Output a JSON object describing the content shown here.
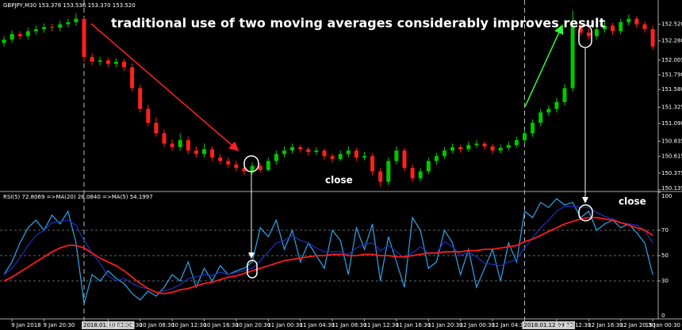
{
  "chart_data": [
    {
      "type": "candlestick",
      "title": "GBPJPY,M30 153.378 153.536 153.370 153.520",
      "annotations": [
        "traditional use of two moving averages considerably improves result",
        "close",
        "close"
      ],
      "categories": [
        null,
        "9 Jan 2018",
        null,
        null,
        null,
        "9 Jan 20:30",
        null,
        null,
        null,
        null,
        "2018.01.10 02:30",
        null,
        null,
        "10 Jan 04:30",
        null,
        null,
        null,
        "10 Jan 08:30",
        null,
        null,
        null,
        "10 Jan 12:30",
        null,
        null,
        null,
        "10 Jan 16:30",
        null,
        null,
        null,
        "10 Jan 20:30",
        null,
        null,
        null,
        "11 Jan 00:30",
        null,
        null,
        null,
        "11 Jan 04:30",
        null,
        null,
        null,
        "11 Jan 08:30",
        null,
        null,
        null,
        "11 Jan 12:30",
        null,
        null,
        null,
        "11 Jan 16:30",
        null,
        null,
        null,
        "11 Jan 20:30",
        null,
        null,
        null,
        "12 Jan 00:30",
        null,
        null,
        null,
        "12 Jan 04:30",
        null,
        null,
        null,
        "2018.01.12 09:30",
        null,
        null,
        null,
        "12 Jan 12:30",
        null,
        null,
        null,
        "12 Jan 16:30",
        null,
        null,
        null,
        "12 Jan 20:30",
        null,
        null,
        null,
        "15 Jan 00:30"
      ],
      "candles": [
        [
          152.25,
          152.35,
          152.2,
          152.3
        ],
        [
          152.3,
          152.43,
          152.25,
          152.38
        ],
        [
          152.38,
          152.42,
          152.3,
          152.35
        ],
        [
          152.35,
          152.47,
          152.3,
          152.42
        ],
        [
          152.42,
          152.5,
          152.37,
          152.45
        ],
        [
          152.45,
          152.53,
          152.4,
          152.48
        ],
        [
          152.48,
          152.53,
          152.42,
          152.47
        ],
        [
          152.47,
          152.57,
          152.42,
          152.52
        ],
        [
          152.52,
          152.6,
          152.47,
          152.55
        ],
        [
          152.55,
          152.68,
          152.5,
          152.6
        ],
        [
          152.6,
          152.62,
          151.98,
          152.05
        ],
        [
          152.05,
          152.1,
          151.93,
          151.98
        ],
        [
          151.98,
          152.05,
          151.93,
          152.0
        ],
        [
          152.0,
          152.04,
          151.9,
          151.95
        ],
        [
          151.95,
          152.03,
          151.9,
          151.98
        ],
        [
          151.98,
          152.02,
          151.85,
          151.9
        ],
        [
          151.9,
          151.95,
          151.55,
          151.6
        ],
        [
          151.6,
          151.65,
          151.25,
          151.3
        ],
        [
          151.3,
          151.36,
          151.05,
          151.1
        ],
        [
          151.1,
          151.18,
          150.9,
          150.95
        ],
        [
          150.95,
          151.0,
          150.75,
          150.8
        ],
        [
          150.8,
          150.86,
          150.7,
          150.75
        ],
        [
          150.75,
          150.95,
          150.7,
          150.85
        ],
        [
          150.85,
          150.9,
          150.65,
          150.7
        ],
        [
          150.7,
          150.76,
          150.6,
          150.65
        ],
        [
          150.65,
          150.8,
          150.6,
          150.72
        ],
        [
          150.72,
          150.76,
          150.55,
          150.6
        ],
        [
          150.6,
          150.65,
          150.5,
          150.55
        ],
        [
          150.55,
          150.6,
          150.45,
          150.5
        ],
        [
          150.5,
          150.55,
          150.4,
          150.45
        ],
        [
          150.45,
          150.5,
          150.35,
          150.4
        ],
        [
          150.4,
          150.53,
          150.36,
          150.48
        ],
        [
          150.48,
          150.52,
          150.38,
          150.42
        ],
        [
          150.42,
          150.6,
          150.4,
          150.55
        ],
        [
          150.55,
          150.7,
          150.5,
          150.65
        ],
        [
          150.65,
          150.76,
          150.6,
          150.7
        ],
        [
          150.7,
          150.8,
          150.66,
          150.75
        ],
        [
          150.75,
          150.78,
          150.67,
          150.72
        ],
        [
          150.72,
          150.75,
          150.63,
          150.68
        ],
        [
          150.68,
          150.75,
          150.64,
          150.7
        ],
        [
          150.7,
          150.73,
          150.57,
          150.62
        ],
        [
          150.62,
          150.66,
          150.53,
          150.58
        ],
        [
          150.58,
          150.7,
          150.55,
          150.65
        ],
        [
          150.65,
          150.76,
          150.6,
          150.7
        ],
        [
          150.7,
          150.74,
          150.55,
          150.6
        ],
        [
          150.6,
          150.68,
          150.56,
          150.62
        ],
        [
          150.62,
          150.66,
          150.35,
          150.4
        ],
        [
          150.4,
          150.45,
          150.18,
          150.25
        ],
        [
          150.25,
          150.6,
          150.2,
          150.55
        ],
        [
          150.55,
          150.76,
          150.5,
          150.7
        ],
        [
          150.7,
          150.74,
          150.4,
          150.45
        ],
        [
          150.45,
          150.5,
          150.25,
          150.3
        ],
        [
          150.3,
          150.45,
          150.26,
          150.4
        ],
        [
          150.4,
          150.6,
          150.36,
          150.55
        ],
        [
          150.55,
          150.67,
          150.5,
          150.62
        ],
        [
          150.62,
          150.75,
          150.58,
          150.7
        ],
        [
          150.7,
          150.8,
          150.66,
          150.75
        ],
        [
          150.75,
          150.78,
          150.67,
          150.72
        ],
        [
          150.72,
          150.83,
          150.68,
          150.78
        ],
        [
          150.78,
          150.85,
          150.74,
          150.8
        ],
        [
          150.8,
          150.83,
          150.71,
          150.76
        ],
        [
          150.76,
          150.8,
          150.65,
          150.7
        ],
        [
          150.7,
          150.79,
          150.66,
          150.74
        ],
        [
          150.74,
          150.83,
          150.7,
          150.78
        ],
        [
          150.78,
          150.9,
          150.74,
          150.85
        ],
        [
          150.85,
          151.0,
          150.8,
          150.95
        ],
        [
          150.95,
          151.15,
          150.9,
          151.1
        ],
        [
          151.1,
          151.3,
          151.05,
          151.25
        ],
        [
          151.25,
          151.35,
          151.2,
          151.3
        ],
        [
          151.3,
          151.46,
          151.25,
          151.4
        ],
        [
          151.4,
          151.66,
          151.35,
          151.6
        ],
        [
          151.6,
          152.72,
          151.55,
          152.5
        ],
        [
          152.5,
          152.55,
          152.35,
          152.4
        ],
        [
          152.4,
          152.46,
          152.3,
          152.35
        ],
        [
          152.35,
          152.5,
          152.3,
          152.45
        ],
        [
          152.45,
          152.56,
          152.4,
          152.5
        ],
        [
          152.5,
          152.54,
          152.37,
          152.42
        ],
        [
          152.42,
          152.6,
          152.38,
          152.55
        ],
        [
          152.55,
          152.66,
          152.5,
          152.6
        ],
        [
          152.6,
          152.64,
          152.47,
          152.52
        ],
        [
          152.52,
          152.56,
          152.4,
          152.45
        ],
        [
          152.45,
          152.5,
          152.15,
          152.2
        ]
      ],
      "up_color": "#00c800",
      "down_color": "#ff2020",
      "ylim": [
        150.11,
        152.87
      ],
      "yticks": [
        150.135,
        150.375,
        150.615,
        150.835,
        {
          "value": 151.09,
          "label": "151.090"
        },
        151.325,
        {
          "value": 151.58,
          "label": "151.580"
        },
        {
          "value": 151.79,
          "label": "151.790"
        },
        152.005,
        {
          "value": 152.28,
          "label": "152.280"
        },
        {
          "value": 152.52,
          "label": "152.520"
        }
      ]
    },
    {
      "type": "line",
      "title": "RSI(5) 72.8069 =>MA(20) 28.0840 =>MA(5) 54.1997",
      "series": [
        {
          "color": "#2aa6ee",
          "values": [
            35,
            45,
            60,
            72,
            78,
            70,
            82,
            75,
            85,
            60,
            12,
            35,
            30,
            38,
            32,
            28,
            20,
            15,
            22,
            18,
            25,
            35,
            30,
            45,
            25,
            40,
            30,
            42,
            35,
            38,
            40,
            45,
            72,
            65,
            78,
            55,
            70,
            45,
            60,
            50,
            40,
            70,
            62,
            35,
            72,
            55,
            75,
            30,
            65,
            45,
            25,
            80,
            70,
            40,
            45,
            70,
            60,
            35,
            55,
            25,
            40,
            55,
            30,
            60,
            45,
            85,
            80,
            92,
            88,
            95,
            90,
            92,
            80,
            85,
            70,
            75,
            78,
            72,
            75,
            68,
            60,
            35
          ]
        },
        {
          "color": "#2030c0",
          "values": [
            35,
            40,
            48,
            58,
            66,
            70,
            76,
            77,
            78,
            74,
            62,
            52,
            44,
            34,
            30,
            32,
            28,
            25,
            24,
            21,
            22,
            24,
            27,
            32,
            33,
            35,
            34,
            37,
            35,
            37,
            38,
            40,
            46,
            53,
            60,
            62,
            66,
            62,
            60,
            56,
            53,
            53,
            53,
            51,
            56,
            59,
            60,
            54,
            58,
            53,
            48,
            52,
            57,
            52,
            52,
            61,
            57,
            50,
            53,
            49,
            44,
            43,
            42,
            45,
            47,
            56,
            64,
            72,
            78,
            85,
            89,
            89,
            88,
            88,
            84,
            81,
            79,
            76,
            75,
            74,
            70,
            60
          ]
        },
        {
          "color": "#ff1a1a",
          "values": [
            30,
            33,
            37,
            41,
            45,
            49,
            53,
            56,
            58,
            58,
            56,
            52,
            48,
            45,
            42,
            38,
            33,
            28,
            24,
            21,
            20,
            21,
            23,
            24,
            26,
            28,
            29,
            31,
            33,
            34,
            36,
            38,
            40,
            42,
            44,
            46,
            47,
            48,
            49,
            50,
            50,
            51,
            51,
            50,
            50,
            51,
            51,
            50,
            50,
            49,
            49,
            50,
            51,
            52,
            52,
            53,
            53,
            53,
            54,
            54,
            55,
            55,
            56,
            57,
            58,
            61,
            63,
            66,
            69,
            72,
            75,
            77,
            79,
            80,
            80,
            79,
            78,
            76,
            74,
            72,
            70,
            66
          ]
        }
      ],
      "ylim": [
        0,
        100
      ],
      "yticks": [
        0,
        30,
        50,
        70,
        100
      ]
    }
  ]
}
